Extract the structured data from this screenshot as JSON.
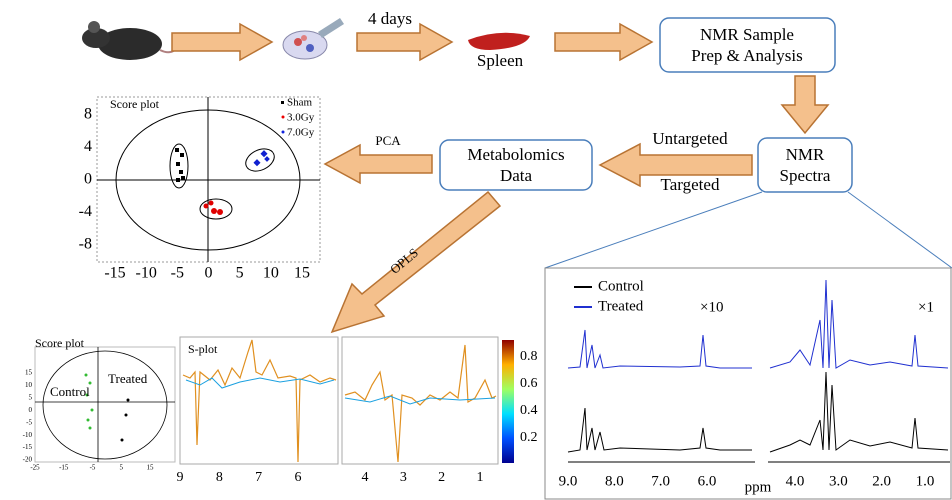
{
  "workflow": {
    "duration": "4 days",
    "organ": "Spleen",
    "sample_box": [
      "NMR Sample",
      "Prep & Analysis"
    ],
    "spectra_box": [
      "NMR",
      "Spectra"
    ],
    "untargeted": "Untargeted",
    "targeted": "Targeted",
    "metabolomics_box": [
      "Metabolomics",
      "Data"
    ],
    "pca": "PCA",
    "opls": "OPLS"
  },
  "pca_plot": {
    "title": "Score plot",
    "legend": [
      "Sham",
      "3.0Gy",
      "7.0Gy"
    ],
    "yticks": [
      "8",
      "4",
      "0",
      "-4",
      "-8"
    ],
    "xticks": [
      "-15",
      "-10",
      "-5",
      "0",
      "5",
      "10",
      "15"
    ]
  },
  "opls_plot": {
    "title": "Score plot",
    "groups": [
      "Control",
      "Treated"
    ],
    "yticks": [
      "15",
      "10",
      "5",
      "0",
      "-5",
      "-10",
      "-15",
      "-20"
    ],
    "xticks": [
      "-25",
      "-15",
      "-5",
      "5",
      "15"
    ]
  },
  "s_plot": {
    "title": "S-plot",
    "xticks_left": [
      "9",
      "8",
      "7",
      "6"
    ],
    "xticks_right": [
      "4",
      "3",
      "2",
      "1"
    ],
    "colorbar_ticks": [
      "0.8",
      "0.6",
      "0.4",
      "0.2"
    ]
  },
  "spectra": {
    "legend": [
      "Control",
      "Treated"
    ],
    "scale_left": "×10",
    "scale_right": "×1",
    "xticks_left": [
      "9.0",
      "8.0",
      "7.0",
      "6.0"
    ],
    "xlabel": "ppm",
    "xticks_right": [
      "4.0",
      "3.0",
      "2.0",
      "1.0"
    ]
  }
}
